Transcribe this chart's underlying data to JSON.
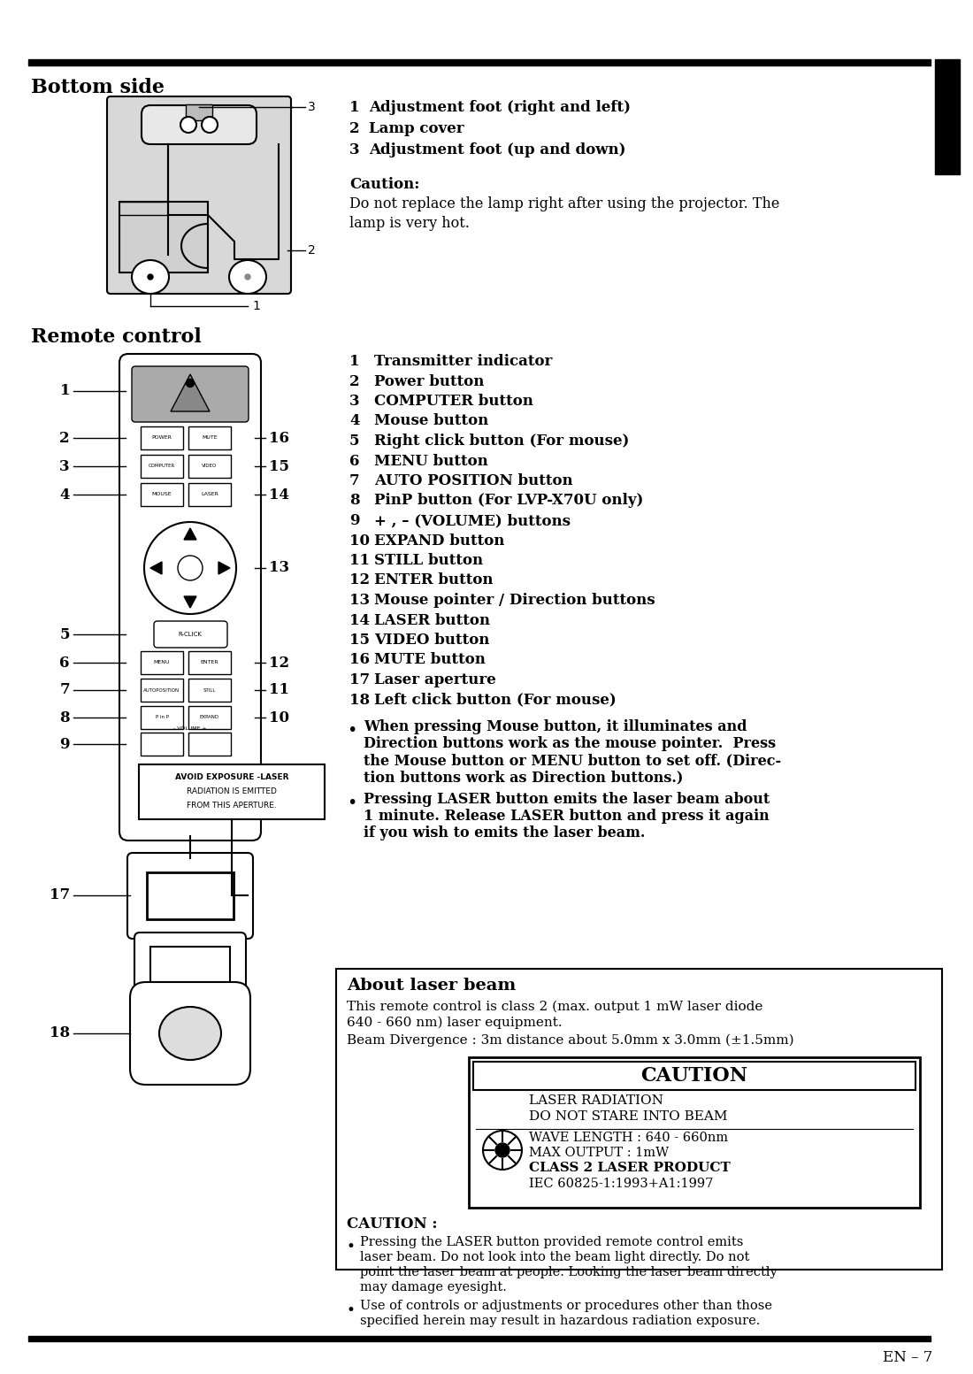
{
  "bg_color": "#ffffff",
  "page_width": 10.8,
  "page_height": 15.28,
  "section1_title": "Bottom side",
  "section2_title": "Remote control",
  "caution_title": "Caution:",
  "caution_text1": "Do not replace the lamp right after using the projector. The",
  "caution_text2": "lamp is very hot.",
  "remote_items": [
    [
      "1",
      "Transmitter indicator"
    ],
    [
      "2",
      "Power button"
    ],
    [
      "3",
      "COMPUTER button"
    ],
    [
      "4",
      "Mouse button"
    ],
    [
      "5",
      "Right click button (For mouse)"
    ],
    [
      "6",
      "MENU button"
    ],
    [
      "7",
      "AUTO POSITION button"
    ],
    [
      "8",
      "PinP button (For LVP-X70U only)"
    ],
    [
      "9",
      "+ , – (VOLUME) buttons"
    ],
    [
      "10",
      "EXPAND button"
    ],
    [
      "11",
      "STILL button"
    ],
    [
      "12",
      "ENTER button"
    ],
    [
      "13",
      "Mouse pointer / Direction buttons"
    ],
    [
      "14",
      "LASER button"
    ],
    [
      "15",
      "VIDEO button"
    ],
    [
      "16",
      "MUTE button"
    ],
    [
      "17",
      "Laser aperture"
    ],
    [
      "18",
      "Left click button (For mouse)"
    ]
  ],
  "bullet1_lines": [
    "When pressing Mouse button, it illuminates and",
    "Direction buttons work as the mouse pointer.  Press",
    "the Mouse button or MENU button to set off. (Direc-",
    "tion buttons work as Direction buttons.)"
  ],
  "bullet2_lines": [
    "Pressing LASER button emits the laser beam about",
    "1 minute. Release LASER button and press it again",
    "if you wish to emits the laser beam."
  ],
  "about_laser_title": "About laser beam",
  "about_laser_text1": "This remote control is class 2 (max. output 1 mW laser diode",
  "about_laser_text2": "640 - 660 nm) laser equipment.",
  "about_laser_text3": "Beam Divergence : 3m distance about 5.0mm x 3.0mm (±1.5mm)",
  "caution_box_title": "CAUTION",
  "inner_line1": "LASER RADIATION",
  "inner_line2": "DO NOT STARE INTO BEAM",
  "inner_line3": "WAVE LENGTH : 640 - 660nm",
  "inner_line4": "MAX OUTPUT : 1mW",
  "inner_line5": "CLASS 2 LASER PRODUCT",
  "inner_line6": "IEC 60825-1:1993+A1:1997",
  "caution2_title": "CAUTION :",
  "caution2_b1_lines": [
    "Pressing the LASER button provided remote control emits",
    "laser beam. Do not look into the beam light directly. Do not",
    "point the laser beam at people. Looking the laser beam directly",
    "may damage eyesight."
  ],
  "caution2_b2_lines": [
    "Use of controls or adjustments or procedures other than those",
    "specified herein may result in hazardous radiation exposure."
  ],
  "page_label": "EN – 7",
  "avoid_line1": "AVOID EXPOSURE -LASER",
  "avoid_line2": "RADIATION IS EMITTED",
  "avoid_line3": "FROM THIS APERTURE."
}
